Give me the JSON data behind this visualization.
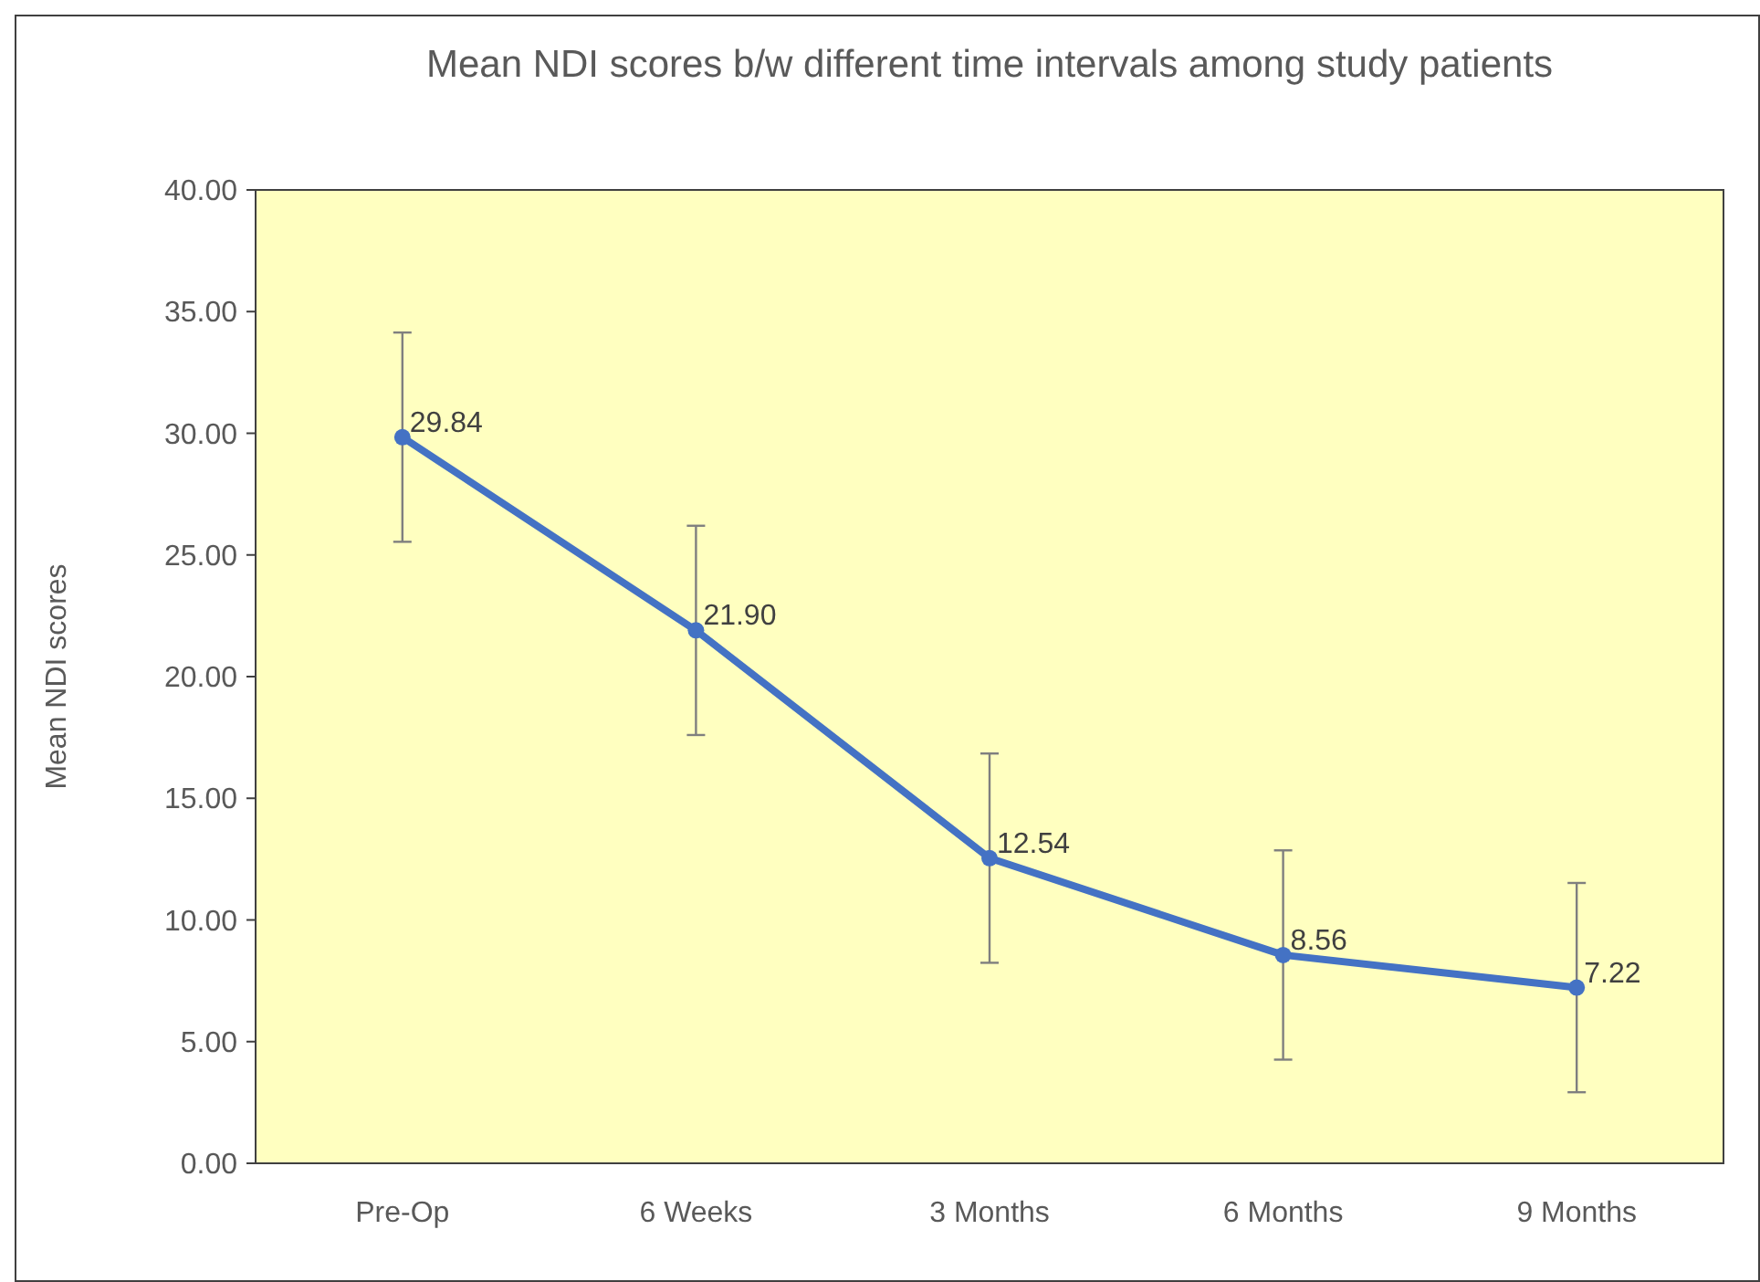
{
  "chart_data": {
    "type": "line",
    "title": "Mean NDI scores b/w different time intervals among study patients",
    "ylabel": "Mean NDI scores",
    "categories": [
      "Pre-Op",
      "6 Weeks",
      "3 Months",
      "6 Months",
      "9 Months"
    ],
    "series": [
      {
        "color": "#4472c4",
        "values": [
          29.84,
          21.9,
          12.54,
          8.56,
          7.22
        ],
        "errors": [
          4.3,
          4.3,
          4.3,
          4.3,
          4.3
        ],
        "value_labels": [
          "29.84",
          "21.90",
          "12.54",
          "8.56",
          "7.22"
        ]
      }
    ],
    "ylim": [
      0,
      40
    ],
    "yticks": [
      {
        "value": 0,
        "label": "0.00"
      },
      {
        "value": 5,
        "label": "5.00"
      },
      {
        "value": 10,
        "label": "10.00"
      },
      {
        "value": 15,
        "label": "15.00"
      },
      {
        "value": 20,
        "label": "20.00"
      },
      {
        "value": 25,
        "label": "25.00"
      },
      {
        "value": 30,
        "label": "30.00"
      },
      {
        "value": 35,
        "label": "35.00"
      },
      {
        "value": 40,
        "label": "40.00"
      }
    ],
    "marker": "circle",
    "line_style": "solid",
    "grid": false
  }
}
